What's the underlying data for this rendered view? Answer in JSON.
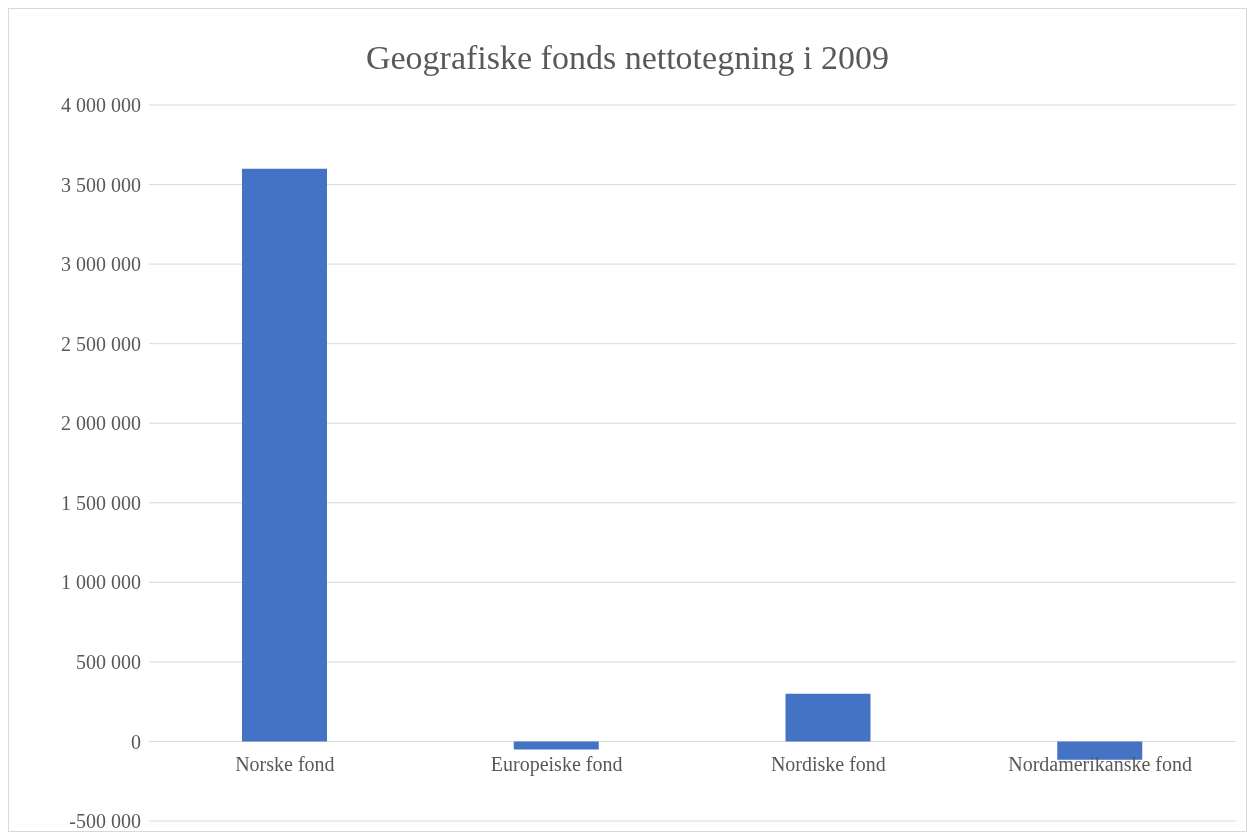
{
  "chart_data": {
    "type": "bar",
    "title": "Geografiske fonds nettotegning i 2009",
    "categories": [
      "Norske fond",
      "Europeiske fond",
      "Nordiske fond",
      "Nordamerikanske fond"
    ],
    "values": [
      3600000,
      -50000,
      300000,
      -115000
    ],
    "color": "#4472c4",
    "ylim": [
      -500000,
      4000000
    ],
    "yticks": [
      {
        "value": -500000,
        "label": "-500 000"
      },
      {
        "value": 0,
        "label": "0"
      },
      {
        "value": 500000,
        "label": "500 000"
      },
      {
        "value": 1000000,
        "label": "1 000 000"
      },
      {
        "value": 1500000,
        "label": "1 500 000"
      },
      {
        "value": 2000000,
        "label": "2 000 000"
      },
      {
        "value": 2500000,
        "label": "2 500 000"
      },
      {
        "value": 3000000,
        "label": "3 000 000"
      },
      {
        "value": 3500000,
        "label": "3 500 000"
      },
      {
        "value": 4000000,
        "label": "4 000 000"
      }
    ],
    "grid": "y"
  }
}
